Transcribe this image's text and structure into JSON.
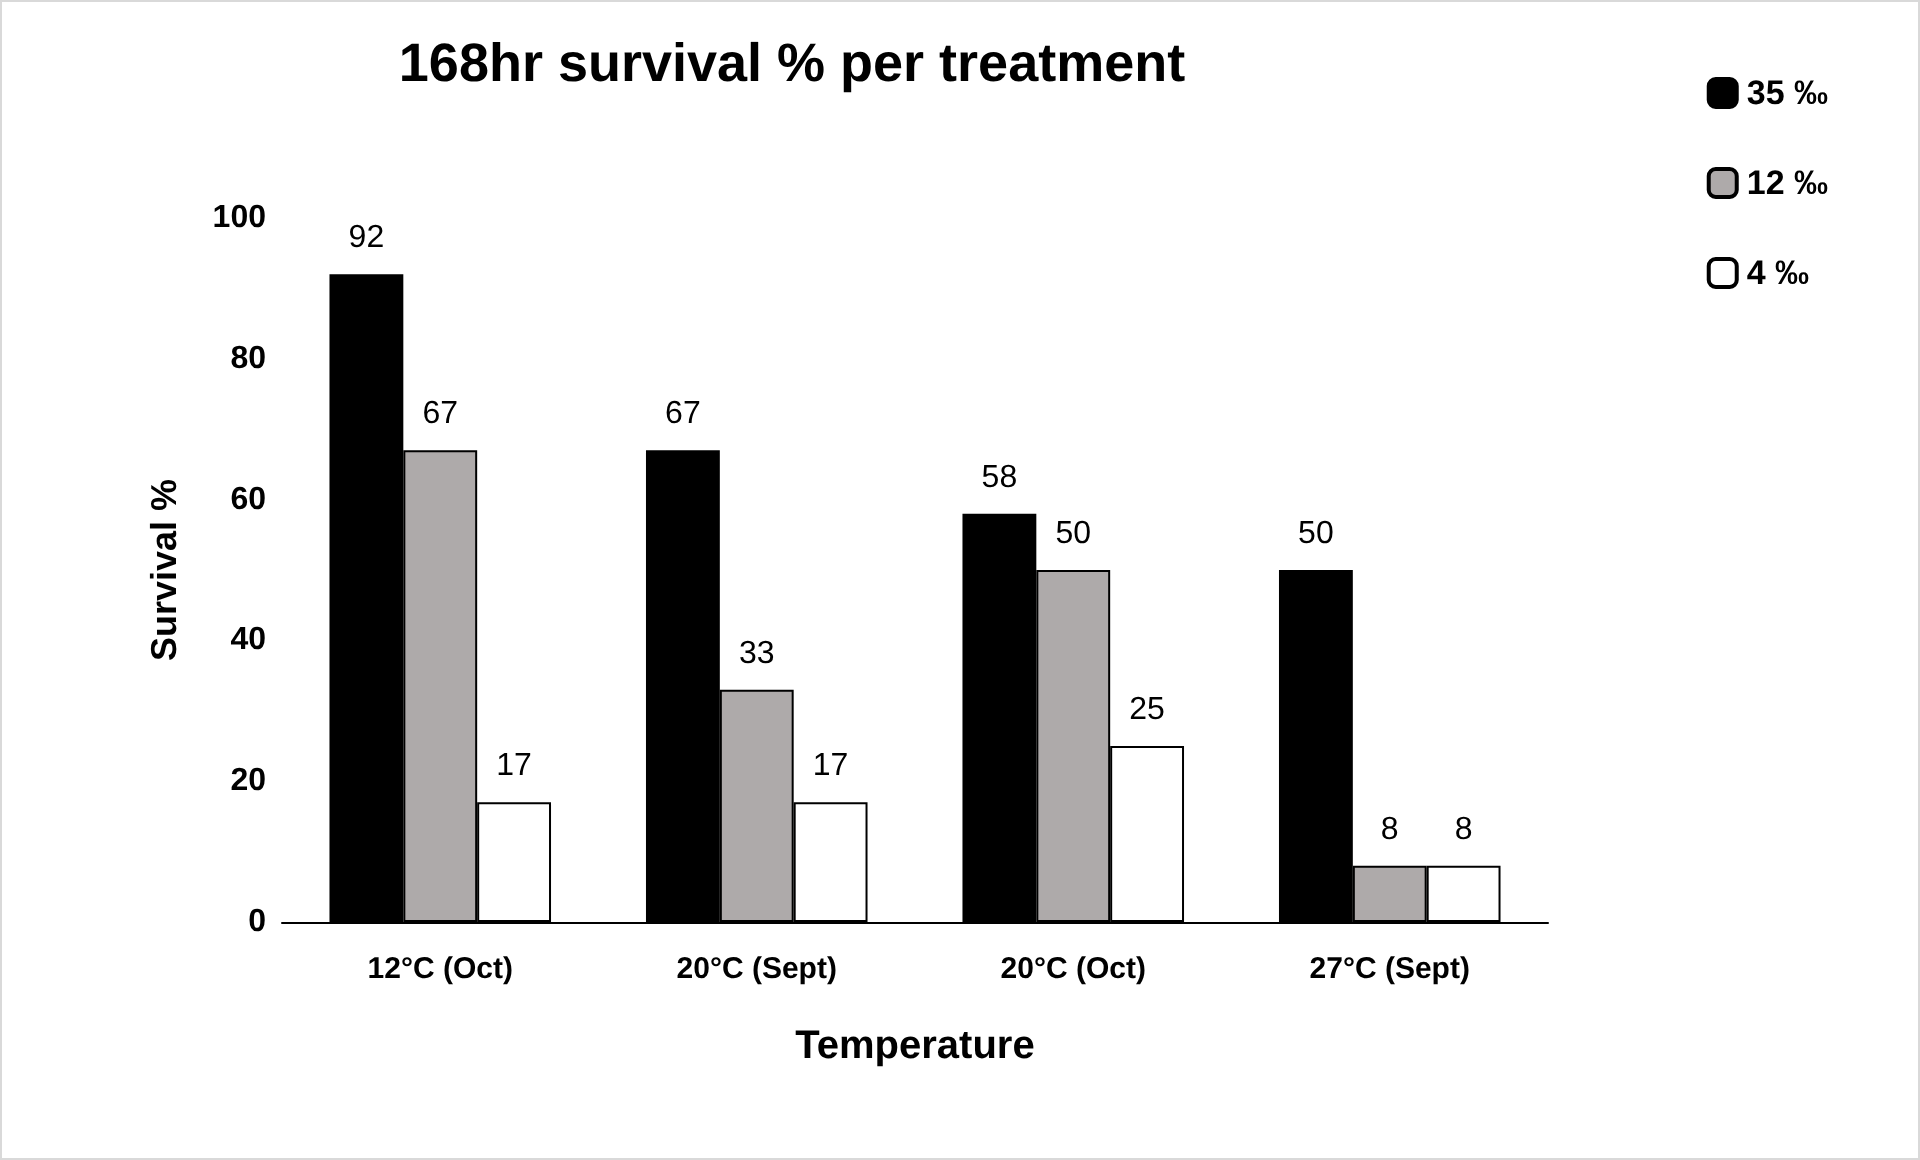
{
  "chart_data": {
    "type": "bar",
    "title": "168hr survival % per treatment",
    "xlabel": "Temperature",
    "ylabel": "Survival %",
    "categories": [
      "12°C (Oct)",
      "20°C (Sept)",
      "20°C (Oct)",
      "27°C (Sept)"
    ],
    "series": [
      {
        "name": "35 ‰",
        "color": "#000000",
        "values": [
          92,
          67,
          58,
          50
        ]
      },
      {
        "name": "12 ‰",
        "color": "#aeaaaa",
        "values": [
          67,
          33,
          50,
          8
        ]
      },
      {
        "name": "4 ‰",
        "color": "#ffffff",
        "values": [
          17,
          17,
          25,
          8
        ]
      }
    ],
    "ylim": [
      0,
      100
    ],
    "yticks": [
      0,
      20,
      40,
      60,
      80,
      100
    ],
    "grid": false,
    "legend": "top right",
    "data_labels": true
  }
}
